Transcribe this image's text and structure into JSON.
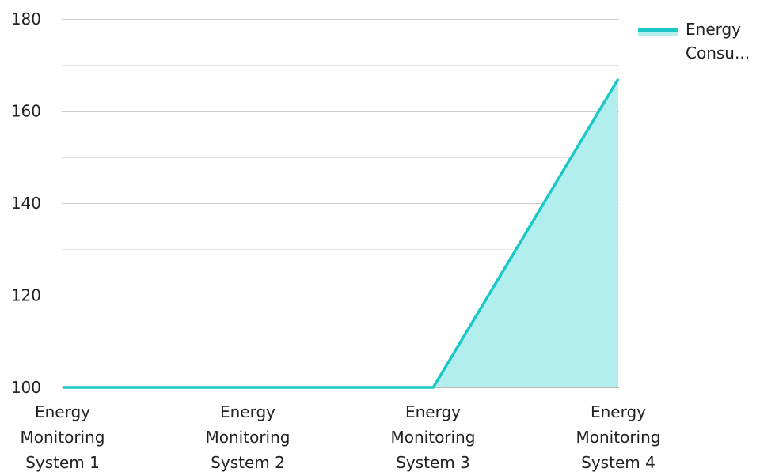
{
  "chart_data": {
    "type": "area",
    "title": "",
    "xlabel": "",
    "ylabel": "",
    "categories": [
      [
        "Energy",
        "Monitoring",
        "System 1"
      ],
      [
        "Energy",
        "Monitoring",
        "System 2"
      ],
      [
        "Energy",
        "Monitoring",
        "System 3"
      ],
      [
        "Energy",
        "Monitoring",
        "System 4"
      ]
    ],
    "series": [
      {
        "name_lines": [
          "Energy",
          "Consu..."
        ],
        "values": [
          100,
          100,
          100,
          167
        ],
        "color": "#1cc7c7",
        "fill": "#b2eeee"
      }
    ],
    "ylim": [
      100,
      180
    ],
    "yticks": [
      "100",
      "120",
      "140",
      "160",
      "180"
    ],
    "grid": true,
    "legend_position": "top-right"
  }
}
